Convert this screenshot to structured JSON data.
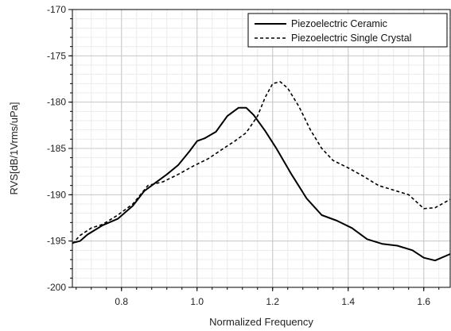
{
  "chart_data": {
    "type": "line",
    "title": "",
    "xlabel": "Normalized Frequency",
    "ylabel": "RVS[dB/1Vrms/uPa]",
    "xlim": [
      0.67,
      1.67
    ],
    "ylim": [
      -200,
      -170
    ],
    "xticks": [
      0.8,
      1.0,
      1.2,
      1.4,
      1.6
    ],
    "xtick_labels": [
      "0.8",
      "1.0",
      "1.2",
      "1.4",
      "1.6"
    ],
    "yticks": [
      -200,
      -195,
      -190,
      -185,
      -180,
      -175,
      -170
    ],
    "ytick_labels": [
      "-200",
      "-195",
      "-190",
      "-185",
      "-180",
      "-175",
      "-170"
    ],
    "grid": true,
    "legend_position": "top-right",
    "series": [
      {
        "name": "Piezoelectric Ceramic",
        "style": "solid",
        "color": "#000000",
        "x": [
          0.67,
          0.69,
          0.71,
          0.75,
          0.79,
          0.83,
          0.86,
          0.89,
          0.92,
          0.95,
          0.98,
          1.0,
          1.02,
          1.05,
          1.08,
          1.11,
          1.13,
          1.15,
          1.18,
          1.21,
          1.25,
          1.29,
          1.33,
          1.37,
          1.41,
          1.45,
          1.49,
          1.53,
          1.57,
          1.6,
          1.63,
          1.67
        ],
        "y": [
          -195.2,
          -195.0,
          -194.3,
          -193.3,
          -192.6,
          -191.2,
          -189.6,
          -188.7,
          -187.8,
          -186.8,
          -185.3,
          -184.2,
          -183.9,
          -183.2,
          -181.5,
          -180.6,
          -180.6,
          -181.4,
          -183.1,
          -185.0,
          -187.8,
          -190.4,
          -192.2,
          -192.8,
          -193.6,
          -194.8,
          -195.3,
          -195.5,
          -196.0,
          -196.8,
          -197.1,
          -196.4
        ]
      },
      {
        "name": "Piezoelectric Single Crystal",
        "style": "dashed",
        "color": "#000000",
        "x": [
          0.67,
          0.69,
          0.72,
          0.75,
          0.79,
          0.83,
          0.87,
          0.91,
          0.95,
          0.99,
          1.03,
          1.07,
          1.1,
          1.13,
          1.16,
          1.18,
          1.2,
          1.22,
          1.24,
          1.27,
          1.3,
          1.33,
          1.36,
          1.4,
          1.44,
          1.48,
          1.52,
          1.56,
          1.6,
          1.63,
          1.67
        ],
        "y": [
          -195.3,
          -194.4,
          -193.6,
          -193.2,
          -192.2,
          -191.0,
          -189.0,
          -188.6,
          -187.8,
          -186.9,
          -186.1,
          -185.0,
          -184.2,
          -183.3,
          -181.5,
          -179.5,
          -178.0,
          -177.8,
          -178.5,
          -180.5,
          -183.0,
          -185.0,
          -186.3,
          -187.1,
          -188.0,
          -189.0,
          -189.5,
          -190.0,
          -191.5,
          -191.4,
          -190.5
        ]
      }
    ]
  }
}
